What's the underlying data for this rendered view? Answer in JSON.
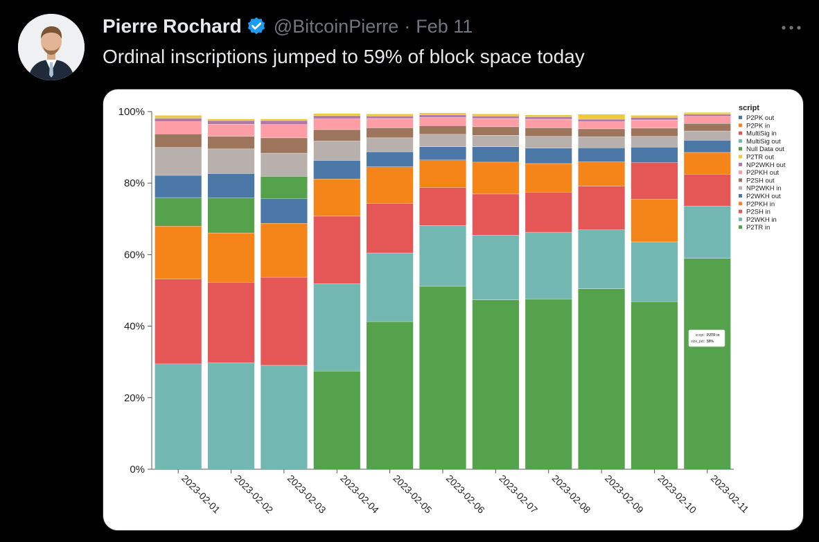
{
  "author": {
    "display_name": "Pierre Rochard",
    "handle": "@BitcoinPierre",
    "separator": "·",
    "date": "Feb 11",
    "verified_color": "#1d9bf0"
  },
  "tweet": {
    "text": "Ordinal inscriptions jumped to 59% of block space today"
  },
  "more_label": "•••",
  "chart_data": {
    "type": "bar",
    "stacked": true,
    "categories": [
      "2023-02-01",
      "2023-02-02",
      "2023-02-03",
      "2023-02-04",
      "2023-02-05",
      "2023-02-06",
      "2023-02-07",
      "2023-02-08",
      "2023-02-09",
      "2023-02-10",
      "2023-02-11"
    ],
    "ylim": [
      0,
      100
    ],
    "yticks": [
      "0%",
      "20%",
      "40%",
      "60%",
      "80%",
      "100%"
    ],
    "legend_title": "script",
    "legend_position": "top-right",
    "series": [
      {
        "name": "P2TR in",
        "color": "#54a24b",
        "values": [
          0,
          0,
          0,
          27.5,
          41.3,
          51.2,
          47.4,
          47.6,
          50.5,
          46.9,
          59.0
        ]
      },
      {
        "name": "P2WKH in",
        "color": "#72b7b2",
        "values": [
          29.5,
          29.8,
          29.1,
          24.4,
          19.2,
          17.0,
          18.1,
          18.7,
          16.5,
          16.7,
          14.6
        ]
      },
      {
        "name": "P2SH in",
        "color": "#e45756",
        "values": [
          23.7,
          22.5,
          24.6,
          18.9,
          13.8,
          10.6,
          11.5,
          11.2,
          12.2,
          0,
          8.9
        ]
      },
      {
        "name": "P2PKH in",
        "color": "#f58518",
        "values": [
          14.8,
          13.8,
          15.1,
          10.4,
          10.3,
          7.7,
          8.9,
          8.0,
          6.8,
          11.9,
          6.1
        ]
      },
      {
        "name": "P2WKH out",
        "color": "#4c78a8",
        "values": [
          0,
          0,
          6.9,
          0,
          0,
          0,
          0,
          0,
          0,
          0,
          0
        ]
      },
      {
        "name": "NP2WKH in",
        "color": "#b8b0ac",
        "values": [
          0,
          0,
          0,
          0,
          0,
          0,
          0,
          0,
          0,
          0,
          0
        ]
      },
      {
        "name": "P2SH out",
        "color": "#9d755d",
        "values": [
          0,
          0,
          0,
          0,
          0,
          0,
          0,
          0,
          0,
          0,
          0
        ]
      },
      {
        "name": "P2PKH out",
        "color": "#ff9da6",
        "values": [
          0,
          0,
          0,
          0,
          0,
          0,
          0,
          0,
          0,
          0,
          0
        ]
      },
      {
        "name": "NP2WKH out",
        "color": "#b279a2",
        "values": [
          0,
          0,
          0,
          0,
          0,
          0,
          0,
          0,
          0,
          0,
          0
        ]
      },
      {
        "name": "P2TR out",
        "color": "#eeca3b",
        "values": [
          0,
          0,
          0,
          0,
          0,
          0,
          0,
          0,
          0,
          0,
          0
        ]
      },
      {
        "name": "Null Data out",
        "color": "#54a24b",
        "values": [
          8.0,
          9.8,
          6.2,
          0,
          0,
          0,
          0,
          0,
          0,
          0,
          0
        ]
      },
      {
        "name": "MultiSig out",
        "color": "#72b7b2",
        "values": [
          0,
          0,
          0,
          0,
          0,
          0,
          0,
          0,
          0,
          0,
          0
        ]
      },
      {
        "name": "MultiSig in",
        "color": "#e45756",
        "values": [
          0,
          0,
          0,
          0,
          0,
          0,
          0,
          0,
          0,
          10.3,
          0
        ]
      },
      {
        "name": "P2PK in",
        "color": "#f58518",
        "values": [
          0,
          0,
          0,
          0,
          0,
          0,
          0,
          0,
          0,
          0,
          0
        ]
      },
      {
        "name": "P2PK out",
        "color": "#4c78a8",
        "values": [
          0,
          0,
          0,
          0,
          0,
          0,
          0,
          0,
          0,
          0,
          0
        ]
      }
    ],
    "top_segments": [
      {
        "name": "P2WKH out",
        "color": "#4c78a8",
        "values": [
          6.2,
          6.8,
          0,
          5.2,
          4.2,
          3.7,
          4.3,
          4.3,
          3.9,
          4.3,
          3.4
        ]
      },
      {
        "name": "NP2WKH in",
        "color": "#b8b0ac",
        "values": [
          7.8,
          6.9,
          6.5,
          5.4,
          3.9,
          3.5,
          3.2,
          3.3,
          3.1,
          3.0,
          2.6
        ]
      },
      {
        "name": "P2SH out",
        "color": "#9d755d",
        "values": [
          3.8,
          3.5,
          4.3,
          3.2,
          2.8,
          2.4,
          2.4,
          2.4,
          2.2,
          2.3,
          2.1
        ]
      },
      {
        "name": "P2PKH out",
        "color": "#ff9da6",
        "values": [
          3.4,
          3.4,
          3.7,
          3.0,
          2.6,
          2.3,
          2.3,
          2.4,
          2.0,
          2.3,
          2.0
        ]
      },
      {
        "name": "NP2WKH out",
        "color": "#b279a2",
        "values": [
          1.0,
          1.0,
          1.1,
          0.9,
          0.7,
          0.7,
          0.7,
          0.7,
          0.7,
          0.7,
          0.6
        ]
      },
      {
        "name": "P2TR out",
        "color": "#eeca3b",
        "values": [
          0.8,
          0.5,
          0.5,
          0.6,
          0.6,
          0.6,
          0.6,
          0.5,
          1.4,
          0.6,
          0.5
        ]
      }
    ],
    "legend_order": [
      "P2PK out",
      "P2PK in",
      "MultiSig in",
      "MultiSig out",
      "Null Data out",
      "P2TR out",
      "NP2WKH out",
      "P2PKH out",
      "P2SH out",
      "NP2WKH in",
      "P2WKH out",
      "P2PKH in",
      "P2SH in",
      "P2WKH in",
      "P2TR in"
    ],
    "legend_colors": [
      "#4c78a8",
      "#f58518",
      "#e45756",
      "#72b7b2",
      "#54a24b",
      "#eeca3b",
      "#b279a2",
      "#ff9da6",
      "#9d755d",
      "#b8b0ac",
      "#4c78a8",
      "#f58518",
      "#e45756",
      "#72b7b2",
      "#54a24b"
    ],
    "tooltip": {
      "script_label": "script:",
      "script_value": "P2TR in",
      "size_label": "size_pct:",
      "size_value": "59%"
    }
  }
}
